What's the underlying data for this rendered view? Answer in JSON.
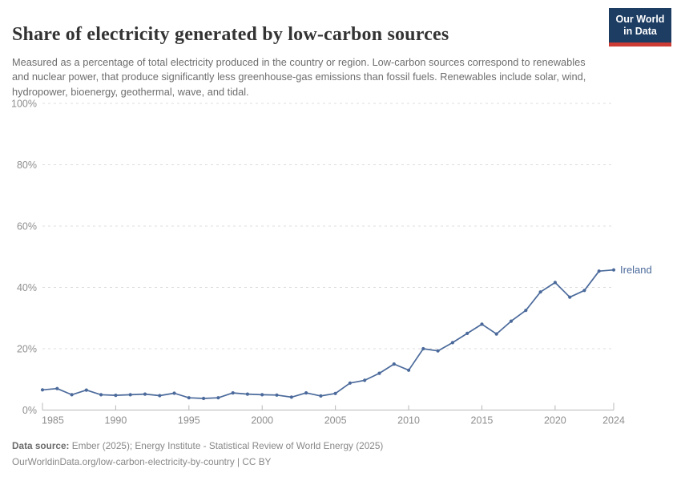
{
  "logo": {
    "line1": "Our World",
    "line2": "in Data",
    "bg_color": "#1d3d63",
    "accent_color": "#cc3b34"
  },
  "chart_data": {
    "type": "line",
    "title": "Share of electricity generated by low-carbon sources",
    "subtitle": "Measured as a percentage of total electricity produced in the country or region. Low-carbon sources correspond to renewables and nuclear power, that produce significantly less greenhouse-gas emissions than fossil fuels. Renewables include solar, wind, hydropower, bioenergy, geothermal, wave, and tidal.",
    "x": [
      1985,
      1986,
      1987,
      1988,
      1989,
      1990,
      1991,
      1992,
      1993,
      1994,
      1995,
      1996,
      1997,
      1998,
      1999,
      2000,
      2001,
      2002,
      2003,
      2004,
      2005,
      2006,
      2007,
      2008,
      2009,
      2010,
      2011,
      2012,
      2013,
      2014,
      2015,
      2016,
      2017,
      2018,
      2019,
      2020,
      2021,
      2022,
      2023,
      2024
    ],
    "series": [
      {
        "name": "Ireland",
        "values": [
          6.6,
          7.0,
          5.0,
          6.5,
          5.0,
          4.8,
          5.0,
          5.2,
          4.7,
          5.5,
          4.0,
          3.8,
          4.0,
          5.6,
          5.2,
          5.0,
          4.9,
          4.2,
          5.6,
          4.6,
          5.4,
          8.8,
          9.7,
          12.0,
          15.0,
          13.0,
          20.0,
          19.3,
          22.0,
          25.0,
          28.0,
          24.8,
          29.0,
          32.5,
          38.5,
          41.6,
          36.8,
          39.0,
          45.3,
          45.7
        ]
      }
    ],
    "xlabel": "",
    "ylabel": "",
    "ylim": [
      0,
      100
    ],
    "yticks": [
      0,
      20,
      40,
      60,
      80,
      100
    ],
    "ytick_suffix": "%",
    "xticks": [
      1985,
      1990,
      1995,
      2000,
      2005,
      2010,
      2015,
      2020,
      2024
    ],
    "grid": "horizontal-dashed",
    "legend_position": "end-of-line-label",
    "line_color": "#4b6a9b",
    "grid_color": "#dcdcdc",
    "axis_color": "#b8b8b8",
    "tick_label_color": "#8f8f8f"
  },
  "footer": {
    "datasource_label": "Data source:",
    "datasource_text": " Ember (2025); Energy Institute - Statistical Review of World Energy (2025)",
    "link_text": "OurWorldinData.org/low-carbon-electricity-by-country | CC BY"
  }
}
